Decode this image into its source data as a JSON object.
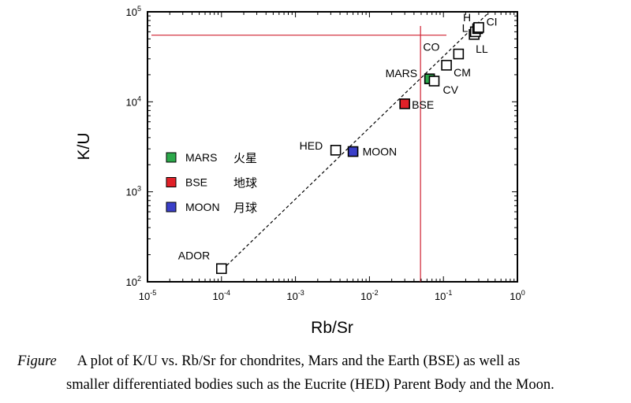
{
  "chart_data": {
    "type": "scatter",
    "x_scale": "log",
    "y_scale": "log",
    "xlabel": "Rb/Sr",
    "ylabel": "K/U",
    "xlim": [
      1e-05,
      1
    ],
    "ylim": [
      100,
      100000
    ],
    "x_ticks": [
      {
        "value": 1e-05,
        "base": "10",
        "exp": "-5"
      },
      {
        "value": 0.0001,
        "base": "10",
        "exp": "-4"
      },
      {
        "value": 0.001,
        "base": "10",
        "exp": "-3"
      },
      {
        "value": 0.01,
        "base": "10",
        "exp": "-2"
      },
      {
        "value": 0.1,
        "base": "10",
        "exp": "-1"
      },
      {
        "value": 1,
        "base": "10",
        "exp": "0"
      }
    ],
    "y_ticks": [
      {
        "value": 100,
        "base": "10",
        "exp": "2"
      },
      {
        "value": 1000,
        "base": "10",
        "exp": "3"
      },
      {
        "value": 10000,
        "base": "10",
        "exp": "4"
      },
      {
        "value": 100000,
        "base": "10",
        "exp": "5"
      }
    ],
    "grid": false,
    "points": [
      {
        "label": "ADOR",
        "x": 0.0001,
        "y": 140,
        "fill": "#ffffff"
      },
      {
        "label": "HED",
        "x": 0.0035,
        "y": 2900,
        "fill": "#ffffff"
      },
      {
        "label": "MOON",
        "x": 0.006,
        "y": 2800,
        "fill": "#3a3fc8"
      },
      {
        "label": "BSE",
        "x": 0.03,
        "y": 9500,
        "fill": "#e02028"
      },
      {
        "label": "MARS",
        "x": 0.065,
        "y": 18000,
        "fill": "#2ca84a"
      },
      {
        "label": "CV",
        "x": 0.075,
        "y": 17000,
        "fill": "#ffffff"
      },
      {
        "label": "CM",
        "x": 0.11,
        "y": 25500,
        "fill": "#ffffff"
      },
      {
        "label": "CO",
        "x": 0.16,
        "y": 34000,
        "fill": "#ffffff"
      },
      {
        "label": "LL",
        "x": 0.26,
        "y": 56000,
        "fill": "#ffffff"
      },
      {
        "label": "L",
        "x": 0.27,
        "y": 60000,
        "fill": "#ffffff"
      },
      {
        "label": "CI",
        "x": 0.29,
        "y": 65000,
        "fill": "#ffffff"
      },
      {
        "label": "H",
        "x": 0.3,
        "y": 67000,
        "fill": "#ffffff"
      }
    ],
    "trend_line": {
      "from": [
        9.2e-05,
        125
      ],
      "to": [
        0.42,
        100000
      ],
      "style": "dashed"
    },
    "reference_lines": {
      "vertical_x": 0.049,
      "horizontal_y": 55000,
      "color": "#d02030"
    },
    "legend": {
      "position": "left",
      "entries": [
        {
          "name": "MARS",
          "name_zh": "火星",
          "color": "#2ca84a"
        },
        {
          "name": "BSE",
          "name_zh": "地球",
          "color": "#e02028"
        },
        {
          "name": "MOON",
          "name_zh": "月球",
          "color": "#3a3fc8"
        }
      ]
    }
  },
  "caption": {
    "label": "Figure",
    "line1": "A plot of K/U vs. Rb/Sr for chondrites, Mars and the Earth (BSE) as well as",
    "line2": "smaller  differentiated bodies such as the Eucrite (HED) Parent Body  and the  Moon."
  }
}
